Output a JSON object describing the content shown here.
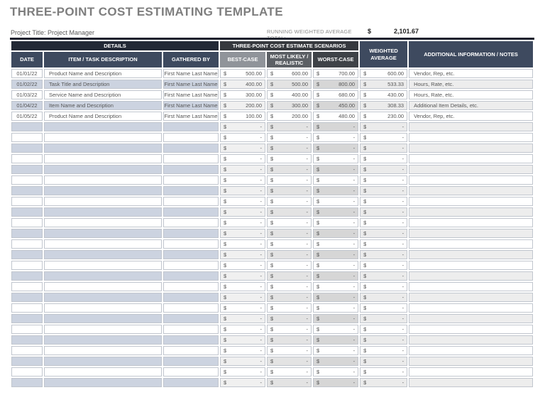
{
  "title": "THREE-POINT COST ESTIMATING TEMPLATE",
  "subheader": {
    "project_label": "Project Title: Project Manager",
    "running_total_label": "RUNNING WEIGHTED AVERAGE TOTAL:",
    "currency_symbol": "$",
    "running_total_value": "2,101.67"
  },
  "table": {
    "group_headers": {
      "details": "DETAILS",
      "scenarios": "THREE-POINT COST ESTIMATE SCENARIOS"
    },
    "column_headers": {
      "date": "DATE",
      "item": "ITEM / TASK DESCRIPTION",
      "gathered": "GATHERED BY",
      "best": "BEST-CASE",
      "likely": "MOST LIKELY / REALISTIC",
      "worst": "WORST-CASE",
      "weighted": "WEIGHTED AVERAGE",
      "notes": "ADDITIONAL INFORMATION / NOTES"
    },
    "currency_symbol": "$",
    "empty_value": "-",
    "empty_row_count": 25,
    "rows": [
      {
        "date": "01/01/22",
        "item": "Product Name and Description",
        "gathered": "First Name Last Name",
        "best": "500.00",
        "likely": "600.00",
        "worst": "700.00",
        "weighted": "600.00",
        "notes": "Vendor, Rep, etc."
      },
      {
        "date": "01/02/22",
        "item": "Task Title and Description",
        "gathered": "First Name Last Name",
        "best": "400.00",
        "likely": "500.00",
        "worst": "800.00",
        "weighted": "533.33",
        "notes": "Hours, Rate, etc."
      },
      {
        "date": "01/03/22",
        "item": "Service Name and Description",
        "gathered": "First Name Last Name",
        "best": "300.00",
        "likely": "400.00",
        "worst": "680.00",
        "weighted": "430.00",
        "notes": "Hours, Rate, etc."
      },
      {
        "date": "01/04/22",
        "item": "Item Name and Description",
        "gathered": "First Name Last Name",
        "best": "200.00",
        "likely": "300.00",
        "worst": "450.00",
        "weighted": "308.33",
        "notes": "Additional Item Details, etc."
      },
      {
        "date": "01/05/22",
        "item": "Product Name and Description",
        "gathered": "First Name Last Name",
        "best": "100.00",
        "likely": "200.00",
        "worst": "480.00",
        "weighted": "230.00",
        "notes": "Vendor, Rep, etc."
      }
    ]
  },
  "colors": {
    "title_text": "#7e7e7e",
    "details_header_bg": "#232936",
    "scenarios_header_bg": "#36393e",
    "slate_header_bg": "#3e4a5f",
    "best_case_header_bg": "#90949a",
    "likely_header_bg": "#5c6065",
    "worst_case_header_bg": "#3f4348",
    "row_shade_blue": "#ccd3e0",
    "row_shade_best": "#f0f0f0",
    "row_shade_likely": "#e3e3e3",
    "row_shade_worst": "#d6d6d6",
    "row_shade_weighted": "#ebebeb",
    "row_shade_notes": "#ededed",
    "cell_border": "#c1c6ce",
    "table_top_border": "#1b202c"
  }
}
